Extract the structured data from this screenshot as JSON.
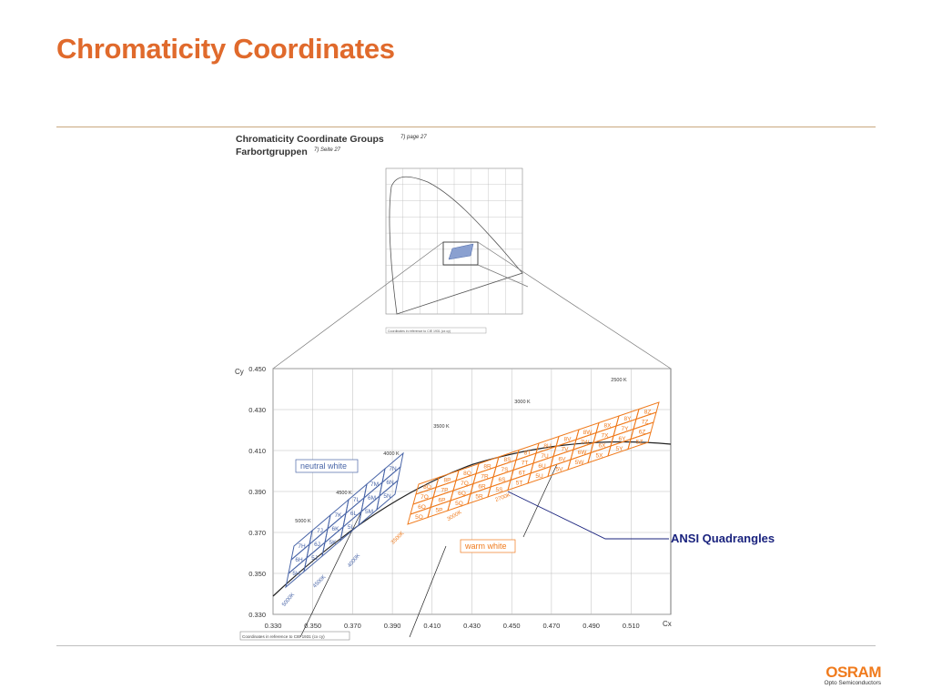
{
  "slide": {
    "title": "Chromaticity Coordinates"
  },
  "figure": {
    "heading_en": "Chromaticity Coordinate Groups",
    "heading_en_ref": "7) page 27",
    "heading_de": "Farbortgruppen",
    "heading_de_ref": "7) Seite 27",
    "inset_note": "Coordinates in reference to CIE 1931 (cx cy)",
    "main_note": "Coordinates in reference to CIE 1931 (cx cy)",
    "y_axis_title": "Cy",
    "x_axis_title": "Cx",
    "x_ticks": [
      "0.330",
      "0.350",
      "0.370",
      "0.390",
      "0.410",
      "0.430",
      "0.450",
      "0.470",
      "0.490",
      "0.510"
    ],
    "y_ticks": [
      "0.450",
      "0.430",
      "0.410",
      "0.390",
      "0.370",
      "0.350",
      "0.330"
    ],
    "cct_labels": [
      "2500 K",
      "3000 K",
      "3500 K",
      "4000 K",
      "4500 K",
      "5000 K"
    ],
    "cct_rotated": [
      "5000K",
      "4500K",
      "4000K",
      "3500K",
      "3000K",
      "2700K"
    ],
    "region_neutral": "neutral white",
    "region_warm": "warm white",
    "blue_bins": [
      "7H",
      "6H",
      "5H",
      "7J",
      "6J",
      "5J",
      "7K",
      "6K",
      "5K",
      "7L",
      "6L",
      "5L",
      "7M",
      "6M",
      "5M",
      "7N",
      "6N",
      "5N"
    ],
    "orange_bins": [
      "8O",
      "7O",
      "6O",
      "5O",
      "8P",
      "7P",
      "6P",
      "5P",
      "8Q",
      "7Q",
      "6Q",
      "5Q",
      "8R",
      "7R",
      "6R",
      "5R",
      "8S",
      "7S",
      "6S",
      "5S",
      "8T",
      "7T",
      "6T",
      "5T",
      "8U",
      "7U",
      "6U",
      "5U",
      "8V",
      "7V",
      "6V",
      "5V",
      "8W",
      "7W",
      "6W",
      "5W",
      "8X",
      "7X",
      "6X",
      "5X",
      "8Y",
      "7Y",
      "6Y",
      "5Y",
      "8Z",
      "7Z",
      "6Z",
      "5Z"
    ],
    "callout": "ANSI Quadrangles"
  },
  "logo": {
    "brand": "OSRAM",
    "subtitle": "Opto Semiconductors"
  },
  "colors": {
    "title": "#e06a2c",
    "blue": "#4a66a8",
    "orange": "#f07b1d",
    "callout": "#1a237e"
  }
}
